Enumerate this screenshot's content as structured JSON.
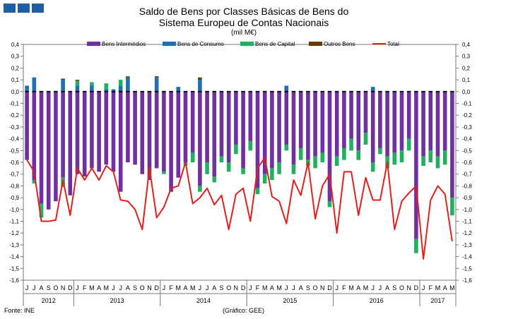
{
  "header": {
    "title_line1": "Saldo de Bens por Classes Básicas de Bens do",
    "title_line2": "Sistema Europeu de Contas Nacionais",
    "unit": "(mil M€)"
  },
  "footer": {
    "source": "Fonte: INE",
    "credit": "(Gráfico: GEE)"
  },
  "colors": {
    "logo": "#1f5fa8"
  },
  "chart_data": {
    "type": "bar",
    "stacked": true,
    "grid": false,
    "legend_position": "top",
    "ylim": [
      -1.6,
      0.4
    ],
    "y_ticks": [
      0.4,
      0.3,
      0.2,
      0.1,
      0.0,
      -0.1,
      -0.2,
      -0.3,
      -0.4,
      -0.5,
      -0.6,
      -0.7,
      -0.8,
      -0.9,
      -1.0,
      -1.1,
      -1.2,
      -1.3,
      -1.4,
      -1.5,
      -1.6
    ],
    "y_tick_labels": [
      "0,4",
      "0,3",
      "0,2",
      "0,1",
      "0,0",
      "-0,1",
      "-0,2",
      "-0,3",
      "-0,4",
      "-0,5",
      "-0,6",
      "-0,7",
      "-0,8",
      "-0,9",
      "-1,0",
      "-1,1",
      "-1,2",
      "-1,3",
      "-1,4",
      "-1,5",
      "-1,6"
    ],
    "categories": [
      "J",
      "J",
      "A",
      "S",
      "O",
      "N",
      "D",
      "J",
      "F",
      "M",
      "A",
      "M",
      "J",
      "J",
      "A",
      "S",
      "O",
      "N",
      "D",
      "J",
      "F",
      "M",
      "A",
      "M",
      "J",
      "J",
      "A",
      "S",
      "O",
      "N",
      "D",
      "J",
      "F",
      "M",
      "A",
      "M",
      "J",
      "J",
      "A",
      "S",
      "O",
      "N",
      "D",
      "J",
      "F",
      "M",
      "A",
      "M",
      "J",
      "J",
      "A",
      "S",
      "O",
      "N",
      "D",
      "J",
      "F",
      "M",
      "A",
      "M"
    ],
    "year_labels": [
      {
        "label": "2012",
        "start": 0,
        "end": 6
      },
      {
        "label": "2013",
        "start": 7,
        "end": 18
      },
      {
        "label": "2014",
        "start": 19,
        "end": 30
      },
      {
        "label": "2015",
        "start": 31,
        "end": 42
      },
      {
        "label": "2016",
        "start": 43,
        "end": 54
      },
      {
        "label": "2017",
        "start": 55,
        "end": 59
      }
    ],
    "series": [
      {
        "name": "Bens Intermédios",
        "color": "#7030a0",
        "kind": "bar",
        "values": [
          -0.58,
          -0.75,
          -0.95,
          -1.0,
          -0.93,
          -0.73,
          -0.88,
          -0.7,
          -0.72,
          -0.65,
          -0.68,
          -0.62,
          -0.68,
          -0.85,
          -0.6,
          -0.62,
          -0.7,
          -0.75,
          -0.65,
          -0.68,
          -0.85,
          -0.73,
          -0.6,
          -0.52,
          -0.8,
          -0.6,
          -0.72,
          -0.55,
          -0.6,
          -0.45,
          -0.65,
          -0.42,
          -0.82,
          -0.7,
          -0.65,
          -0.6,
          -0.45,
          -0.62,
          -0.48,
          -0.58,
          -0.55,
          -0.52,
          -0.93,
          -0.55,
          -0.48,
          -0.4,
          -0.5,
          -0.35,
          -0.6,
          -0.48,
          -0.55,
          -0.52,
          -0.5,
          -0.4,
          -1.25,
          -0.55,
          -0.5,
          -0.55,
          -0.5,
          -0.9
        ]
      },
      {
        "name": "Bens de Consumo",
        "color": "#1f6fb5",
        "kind": "bar",
        "values": [
          0.05,
          0.12,
          0.0,
          0.0,
          0.0,
          0.1,
          0.0,
          0.05,
          0.0,
          0.05,
          0.0,
          0.02,
          0.02,
          0.05,
          0.12,
          0.0,
          0.0,
          0.0,
          0.12,
          0.0,
          0.0,
          0.04,
          0.0,
          0.0,
          0.1,
          0.0,
          0.0,
          0.0,
          0.0,
          0.0,
          0.0,
          0.0,
          0.0,
          0.0,
          0.0,
          0.0,
          0.05,
          0.0,
          0.0,
          0.0,
          0.0,
          0.0,
          0.0,
          0.0,
          0.0,
          0.0,
          0.0,
          0.0,
          0.04,
          0.0,
          0.0,
          0.0,
          0.0,
          0.0,
          0.0,
          0.0,
          0.0,
          0.0,
          0.0,
          0.0
        ]
      },
      {
        "name": "Bens de Capital",
        "color": "#21b060",
        "kind": "bar",
        "values": [
          0.0,
          -0.03,
          -0.12,
          0.0,
          0.0,
          -0.08,
          0.0,
          0.04,
          0.0,
          0.03,
          0.0,
          0.05,
          0.0,
          0.05,
          0.0,
          0.0,
          0.0,
          0.0,
          0.0,
          -0.02,
          0.0,
          0.0,
          -0.03,
          -0.08,
          -0.05,
          -0.1,
          -0.05,
          -0.05,
          -0.08,
          -0.08,
          -0.05,
          -0.08,
          -0.05,
          -0.08,
          -0.1,
          -0.1,
          -0.05,
          -0.08,
          -0.1,
          -0.05,
          -0.1,
          -0.08,
          -0.05,
          -0.08,
          -0.1,
          -0.1,
          -0.08,
          -0.1,
          -0.08,
          -0.05,
          -0.1,
          -0.1,
          -0.1,
          -0.1,
          -0.12,
          -0.08,
          -0.1,
          -0.1,
          -0.12,
          -0.15
        ]
      },
      {
        "name": "Outros Bens",
        "color": "#6b3a00",
        "kind": "bar",
        "values": [
          0.0,
          0.0,
          0.0,
          0.0,
          0.0,
          0.01,
          0.0,
          0.01,
          0.0,
          0.0,
          0.0,
          0.0,
          0.0,
          0.0,
          0.01,
          0.0,
          0.0,
          0.0,
          0.01,
          0.0,
          0.0,
          0.0,
          0.0,
          0.0,
          0.02,
          0.0,
          0.0,
          0.0,
          0.0,
          0.0,
          0.0,
          0.0,
          0.0,
          0.0,
          0.0,
          0.0,
          0.0,
          0.0,
          0.0,
          0.0,
          0.0,
          0.0,
          0.0,
          0.0,
          0.0,
          0.0,
          0.0,
          0.0,
          0.0,
          0.0,
          0.0,
          0.0,
          0.0,
          0.0,
          0.0,
          0.0,
          0.0,
          0.0,
          0.0,
          0.0
        ]
      },
      {
        "name": "Total",
        "color": "#e0201b",
        "kind": "line",
        "values": [
          -0.58,
          -0.68,
          -1.1,
          -1.1,
          -1.09,
          -0.75,
          -1.05,
          -0.65,
          -0.75,
          -0.65,
          -0.75,
          -0.63,
          -0.68,
          -0.92,
          -0.93,
          -1.0,
          -1.17,
          -0.65,
          -1.07,
          -0.98,
          -0.82,
          -0.8,
          -0.6,
          -0.95,
          -0.9,
          -0.82,
          -0.96,
          -0.88,
          -1.17,
          -0.87,
          -0.82,
          -1.1,
          -0.65,
          -0.56,
          -0.89,
          -0.93,
          -1.12,
          -0.75,
          -0.88,
          -0.6,
          -1.08,
          -0.8,
          -0.7,
          -1.2,
          -0.68,
          -0.68,
          -1.05,
          -0.73,
          -0.92,
          -0.92,
          -0.6,
          -1.17,
          -0.93,
          -0.86,
          -0.8,
          -1.42,
          -0.92,
          -0.8,
          -0.87,
          -1.27
        ]
      }
    ]
  }
}
